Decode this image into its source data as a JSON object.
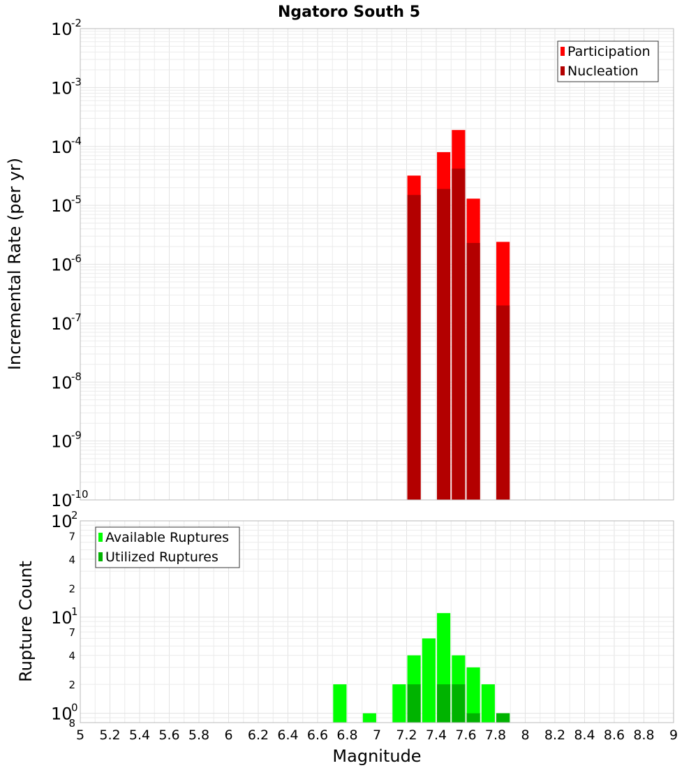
{
  "chart_data": [
    {
      "type": "bar",
      "scale": "log",
      "title": "Ngatoro South 5",
      "xlabel": "",
      "ylabel": "Incremental Rate (per yr)",
      "xlim": [
        5,
        9
      ],
      "ylim": [
        1e-10,
        0.01
      ],
      "y_tick_labels": [
        {
          "base": "10",
          "exp": "-2"
        },
        {
          "base": "10",
          "exp": "-3"
        },
        {
          "base": "10",
          "exp": "-4"
        },
        {
          "base": "10",
          "exp": "-5"
        },
        {
          "base": "10",
          "exp": "-6"
        },
        {
          "base": "10",
          "exp": "-7"
        },
        {
          "base": "10",
          "exp": "-8"
        },
        {
          "base": "10",
          "exp": "-9"
        },
        {
          "base": "10",
          "exp": "-10"
        }
      ],
      "bar_width": 0.09,
      "series": [
        {
          "name": "Participation",
          "color": "#ff0000",
          "x": [
            7.25,
            7.45,
            7.55,
            7.65,
            7.85
          ],
          "values": [
            3.2e-05,
            8e-05,
            0.00019,
            1.3e-05,
            2.4e-06
          ]
        },
        {
          "name": "Nucleation",
          "color": "#b30000",
          "x": [
            7.25,
            7.45,
            7.55,
            7.65,
            7.85
          ],
          "values": [
            1.5e-05,
            1.9e-05,
            4.2e-05,
            2.3e-06,
            2e-07
          ]
        }
      ],
      "legend": "top-right"
    },
    {
      "type": "bar",
      "scale": "log",
      "title": "",
      "xlabel": "Magnitude",
      "ylabel": "Rupture Count",
      "xlim": [
        5,
        9
      ],
      "ylim": [
        0.8,
        100
      ],
      "y_tick_labels": [
        {
          "base": "10",
          "exp": "2"
        },
        {
          "minor": "7"
        },
        {
          "minor": "4"
        },
        {
          "minor": "2"
        },
        {
          "base": "10",
          "exp": "1"
        },
        {
          "minor": "7"
        },
        {
          "minor": "4"
        },
        {
          "minor": "2"
        },
        {
          "base": "10",
          "exp": "0"
        },
        {
          "minor": "8"
        }
      ],
      "x_tick_labels": [
        "5",
        "5.2",
        "5.4",
        "5.6",
        "5.8",
        "6",
        "6.2",
        "6.4",
        "6.6",
        "6.8",
        "7",
        "7.2",
        "7.4",
        "7.6",
        "7.8",
        "8",
        "8.2",
        "8.4",
        "8.6",
        "8.8",
        "9"
      ],
      "bar_width": 0.09,
      "series": [
        {
          "name": "Available Ruptures",
          "color": "#00ff00",
          "x": [
            6.75,
            6.95,
            7.15,
            7.25,
            7.35,
            7.45,
            7.55,
            7.65,
            7.75,
            7.85
          ],
          "values": [
            2,
            1,
            2,
            4,
            6,
            11,
            4,
            3,
            2,
            1
          ]
        },
        {
          "name": "Utilized Ruptures",
          "color": "#00b300",
          "x": [
            7.25,
            7.45,
            7.55,
            7.65,
            7.85
          ],
          "values": [
            2,
            2,
            2,
            1,
            1
          ]
        }
      ],
      "legend": "top-left"
    }
  ]
}
